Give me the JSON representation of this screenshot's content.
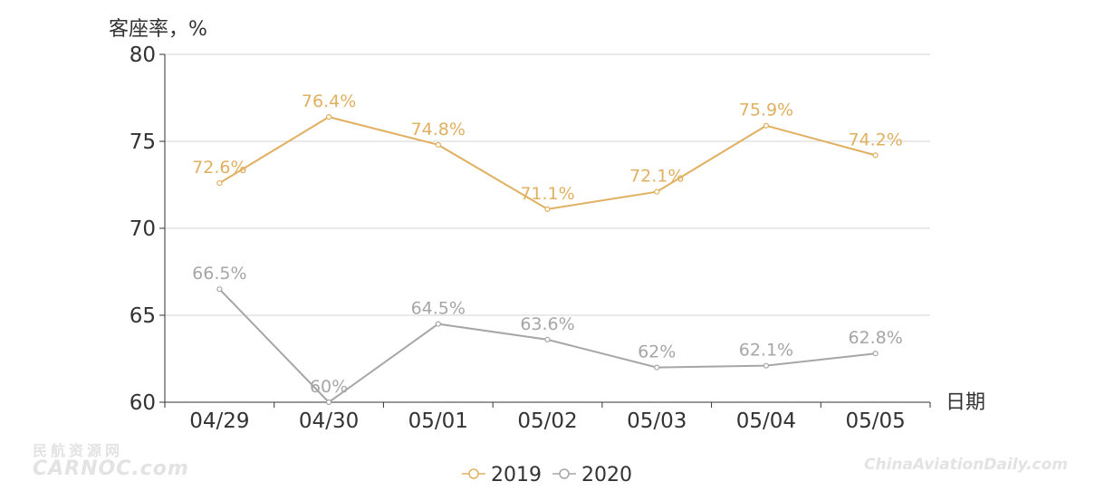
{
  "chart_data": {
    "type": "line",
    "ylabel": "客座率，%",
    "xlabel": "日期",
    "categories": [
      "04/29",
      "04/30",
      "05/01",
      "05/02",
      "05/03",
      "05/04",
      "05/05"
    ],
    "ylim": [
      60,
      80
    ],
    "yticks": [
      60,
      65,
      70,
      75,
      80
    ],
    "grid": true,
    "legend_position": "bottom-center",
    "series": [
      {
        "name": "2019",
        "color": "#e0b060",
        "values": [
          72.6,
          76.4,
          74.8,
          71.1,
          72.1,
          75.9,
          74.2
        ],
        "labels": [
          "72.6%",
          "76.4%",
          "74.8%",
          "71.1%",
          "72.1%",
          "75.9%",
          "74.2%"
        ]
      },
      {
        "name": "2020",
        "color": "#a6a6a6",
        "values": [
          66.5,
          60,
          64.5,
          63.6,
          62,
          62.1,
          62.8
        ],
        "labels": [
          "66.5%",
          "60%",
          "64.5%",
          "63.6%",
          "62%",
          "62.1%",
          "62.8%"
        ]
      }
    ]
  },
  "watermarks": {
    "left_cn": "民航资源网",
    "left_en": "CARNOC.com",
    "right": "ChinaAviationDaily.com"
  }
}
